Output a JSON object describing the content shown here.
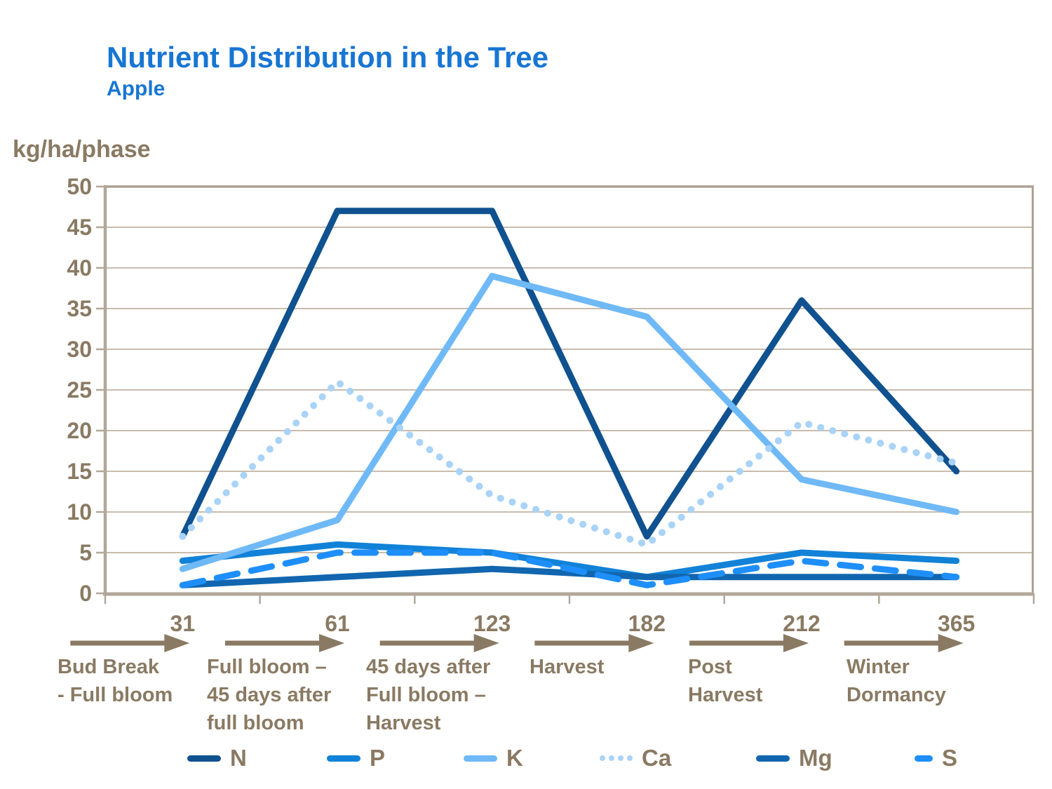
{
  "title": "Nutrient Distribution in the Tree",
  "subtitle": "Apple",
  "y_axis_title": "kg/ha/phase",
  "chart_data": {
    "type": "line",
    "x": [
      31,
      61,
      123,
      182,
      212,
      365
    ],
    "x_tick_labels": [
      "31",
      "61",
      "123",
      "182",
      "212",
      "365"
    ],
    "phase_labels": [
      [
        "Bud Break",
        "- Full bloom"
      ],
      [
        "Full bloom –",
        "45 days after",
        "full bloom"
      ],
      [
        "45 days after",
        "Full bloom –",
        "Harvest"
      ],
      [
        "Harvest"
      ],
      [
        "Post",
        "Harvest"
      ],
      [
        "Winter",
        "Dormancy"
      ]
    ],
    "ylabel": "kg/ha/phase",
    "ylim": [
      0,
      50
    ],
    "ytick_step": 5,
    "grid": true,
    "legend_position": "bottom",
    "series": [
      {
        "name": "N",
        "style": "solid",
        "color": "#10518F",
        "values": [
          7,
          47,
          47,
          7,
          36,
          15
        ]
      },
      {
        "name": "P",
        "style": "solid",
        "color": "#1182D8",
        "values": [
          4,
          6,
          5,
          2,
          5,
          4
        ]
      },
      {
        "name": "K",
        "style": "solid",
        "color": "#6FB9F7",
        "values": [
          3,
          9,
          39,
          34,
          14,
          10
        ]
      },
      {
        "name": "Ca",
        "style": "dotted",
        "color": "#A9D3F7",
        "values": [
          7,
          26,
          12,
          6,
          21,
          16
        ]
      },
      {
        "name": "Mg",
        "style": "solid",
        "color": "#1166AF",
        "values": [
          1,
          2,
          3,
          2,
          2,
          2
        ]
      },
      {
        "name": "S",
        "style": "dashed",
        "color": "#1E8FFA",
        "values": [
          1,
          5,
          5,
          1,
          4,
          2
        ]
      }
    ]
  },
  "colors": {
    "title": "#1876D3",
    "axis_text": "#8A7A63",
    "axis_line": "#B2A79A",
    "gridline": "#C9BCAE",
    "border": "#ABA294",
    "background": "#FFFFFF"
  }
}
